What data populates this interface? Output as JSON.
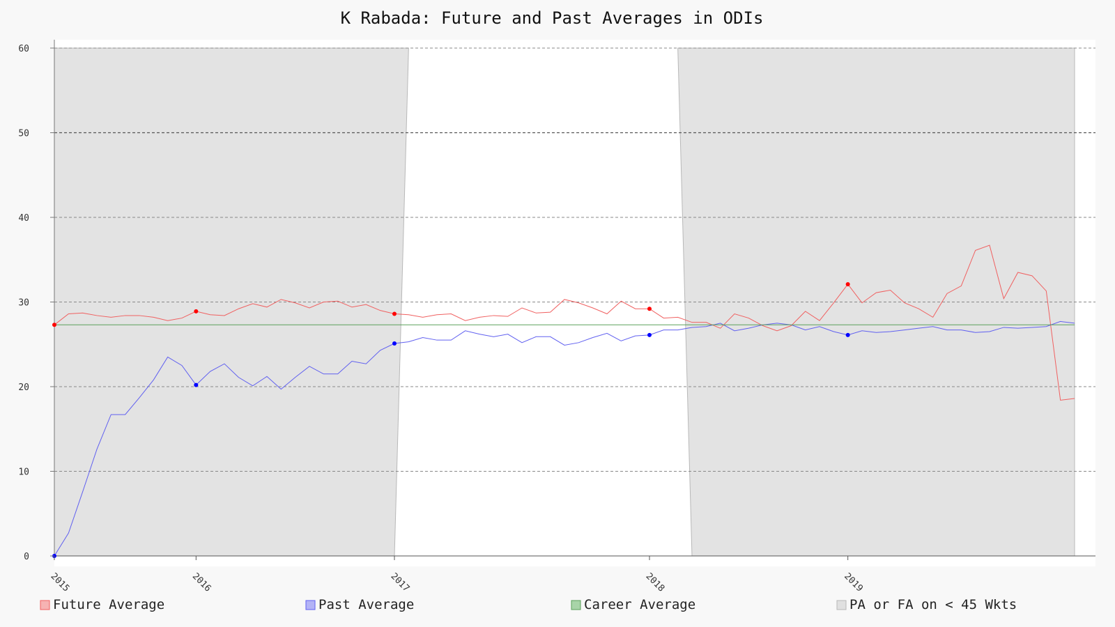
{
  "chart_data": {
    "type": "line",
    "title": "K Rabada: Future and Past Averages in ODIs",
    "xlabel": "",
    "ylabel": "",
    "ylim": [
      0,
      60
    ],
    "yticks": [
      0,
      10,
      20,
      30,
      40,
      50,
      60
    ],
    "xticks": [
      "2015",
      "2016",
      "2017",
      "2018",
      "2019"
    ],
    "xtick_index": [
      0,
      10,
      24,
      42,
      56
    ],
    "n_points": 73,
    "grid": true,
    "legend_position": "bottom",
    "series": [
      {
        "name": "Future Average",
        "color": "#f06060",
        "values": [
          27.3,
          28.6,
          28.7,
          28.4,
          28.2,
          28.4,
          28.4,
          28.2,
          27.8,
          28.1,
          28.9,
          28.5,
          28.4,
          29.2,
          29.8,
          29.4,
          30.3,
          29.9,
          29.3,
          30.0,
          30.1,
          29.4,
          29.7,
          29.0,
          28.6,
          28.5,
          28.2,
          28.5,
          28.6,
          27.8,
          28.2,
          28.4,
          28.3,
          29.3,
          28.7,
          28.8,
          30.3,
          29.9,
          29.3,
          28.6,
          30.1,
          29.2,
          29.2,
          28.1,
          28.2,
          27.6,
          27.6,
          26.9,
          28.6,
          28.1,
          27.2,
          26.6,
          27.2,
          28.9,
          27.8,
          29.9,
          32.1,
          29.9,
          31.1,
          31.4,
          29.9,
          29.2,
          28.2,
          31.0,
          31.9,
          36.1,
          36.7,
          30.4,
          33.5,
          33.1,
          31.3,
          18.4,
          18.6
        ],
        "highlight_index": [
          0,
          10,
          24,
          42,
          56
        ]
      },
      {
        "name": "Past Average",
        "color": "#6060f0",
        "values": [
          0.0,
          2.7,
          7.6,
          12.6,
          16.7,
          16.7,
          18.7,
          20.8,
          23.5,
          22.5,
          20.2,
          21.8,
          22.7,
          21.1,
          20.1,
          21.2,
          19.7,
          21.1,
          22.4,
          21.5,
          21.5,
          23.0,
          22.7,
          24.3,
          25.1,
          25.3,
          25.8,
          25.5,
          25.5,
          26.6,
          26.2,
          25.9,
          26.2,
          25.2,
          25.9,
          25.9,
          24.9,
          25.2,
          25.8,
          26.3,
          25.4,
          26.0,
          26.1,
          26.7,
          26.7,
          27.0,
          27.1,
          27.5,
          26.6,
          26.9,
          27.3,
          27.5,
          27.3,
          26.7,
          27.1,
          26.5,
          26.1,
          26.6,
          26.4,
          26.5,
          26.7,
          26.9,
          27.1,
          26.7,
          26.7,
          26.4,
          26.5,
          27.0,
          26.9,
          27.0,
          27.1,
          27.7,
          27.5
        ],
        "highlight_index": [
          0,
          10,
          24,
          42,
          56
        ]
      },
      {
        "name": "Career Average",
        "color": "#5aa05a",
        "values": [
          27.3,
          27.3
        ]
      }
    ],
    "shaded_regions": {
      "name": "PA or FA on < 45 Wkts",
      "color": "#e3e3e3",
      "ranges": [
        [
          0,
          24
        ],
        [
          45,
          72
        ]
      ]
    }
  },
  "colors": {
    "background": "#f8f8f8",
    "plot_background": "#ffffff",
    "future": "#f06060",
    "future_legend": "#f6b3b3",
    "past": "#6060f0",
    "past_legend": "#b3b3f6",
    "career": "#5aa05a",
    "career_legend": "#a8d4a8",
    "shade": "#e3e3e3",
    "shade_legend": "#e0e0e0",
    "future_marker": "#ff0000",
    "past_marker": "#0000ff"
  }
}
